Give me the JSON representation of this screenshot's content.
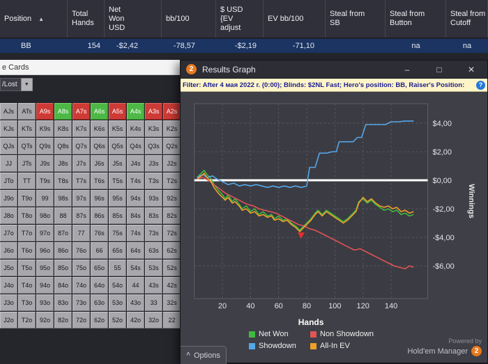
{
  "icons": {
    "sort_asc": "▲",
    "dropdown": "▼",
    "options_chevron": "^",
    "help": "?"
  },
  "stats_table": {
    "columns": [
      {
        "label": "Position",
        "sort": "asc"
      },
      {
        "label": "Total\nHands"
      },
      {
        "label": "Net\nWon\nUSD"
      },
      {
        "label": "bb/100"
      },
      {
        "label": "$ USD\n{EV\nadjust"
      },
      {
        "label": "EV bb/100"
      },
      {
        "label": "Steal from\nSB"
      },
      {
        "label": "Steal from\nButton"
      },
      {
        "label": "Steal from\nCutoff"
      }
    ],
    "row": {
      "values": [
        "BB",
        "154",
        "-$2,42",
        "-78,57",
        "-$2,19",
        "-71,10",
        "",
        "na",
        "na"
      ]
    }
  },
  "hole_cards": {
    "title": "e Cards",
    "filter_dropdown": "/Lost",
    "grid": [
      [
        "AJs",
        "ATs",
        "A9s",
        "A8s",
        "A7s",
        "A6s",
        "A5s",
        "A4s",
        "A3s",
        "A2s"
      ],
      [
        "KJs",
        "KTs",
        "K9s",
        "K8s",
        "K7s",
        "K6s",
        "K5s",
        "K4s",
        "K3s",
        "K2s"
      ],
      [
        "QJs",
        "QTs",
        "Q9s",
        "Q8s",
        "Q7s",
        "Q6s",
        "Q5s",
        "Q4s",
        "Q3s",
        "Q2s"
      ],
      [
        "JJ",
        "JTs",
        "J9s",
        "J8s",
        "J7s",
        "J6s",
        "J5s",
        "J4s",
        "J3s",
        "J2s"
      ],
      [
        "JTo",
        "TT",
        "T9s",
        "T8s",
        "T7s",
        "T6s",
        "T5s",
        "T4s",
        "T3s",
        "T2s"
      ],
      [
        "J9o",
        "T9o",
        "99",
        "98s",
        "97s",
        "96s",
        "95s",
        "94s",
        "93s",
        "92s"
      ],
      [
        "J8o",
        "T8o",
        "98o",
        "88",
        "87s",
        "86s",
        "85s",
        "84s",
        "83s",
        "82s"
      ],
      [
        "J7o",
        "T7o",
        "97o",
        "87o",
        "77",
        "76s",
        "75s",
        "74s",
        "73s",
        "72s"
      ],
      [
        "J6o",
        "T6o",
        "96o",
        "86o",
        "76o",
        "66",
        "65s",
        "64s",
        "63s",
        "62s"
      ],
      [
        "J5o",
        "T5o",
        "95o",
        "85o",
        "75o",
        "65o",
        "55",
        "54s",
        "53s",
        "52s"
      ],
      [
        "J4o",
        "T4o",
        "94o",
        "84o",
        "74o",
        "64o",
        "54o",
        "44",
        "43s",
        "42s"
      ],
      [
        "J3o",
        "T3o",
        "93o",
        "83o",
        "73o",
        "63o",
        "53o",
        "43o",
        "33",
        "32s"
      ],
      [
        "J2o",
        "T2o",
        "92o",
        "82o",
        "72o",
        "62o",
        "52o",
        "42o",
        "32o",
        "22"
      ]
    ],
    "cell_colors": {
      "A9s": "red",
      "A8s": "green",
      "A7s": "red",
      "A6s": "green",
      "A5s": "red",
      "A4s": "green",
      "A3s": "red",
      "A2s": "red"
    }
  },
  "graph_window": {
    "title": "Results Graph",
    "logo": "2",
    "window_buttons": [
      {
        "name": "minimize",
        "glyph": "–"
      },
      {
        "name": "maximize",
        "glyph": "□"
      },
      {
        "name": "close",
        "glyph": "✕"
      }
    ],
    "filter_text": "Filter: After 4 мая 2022 г. (0:00); Blinds: $2NL Fast; Hero's position: BB, Raiser's Position:",
    "options_label": "Options",
    "powered_by": {
      "line1": "Powered by",
      "line2": "Hold'em Manager",
      "logo": "2"
    }
  },
  "chart_data": {
    "type": "line",
    "title": "Results Graph",
    "xlabel": "Hands",
    "ylabel": "Winnings",
    "x_ticks": [
      20,
      40,
      60,
      80,
      100,
      120,
      140
    ],
    "y_ticks": [
      "$4,00",
      "$2,00",
      "$0,00",
      "-$2,00",
      "-$4,00",
      "-$6,00"
    ],
    "y_tick_values": [
      4,
      2,
      0,
      -2,
      -4,
      -6
    ],
    "xlim": [
      0,
      166
    ],
    "ylim": [
      -8.3,
      5.4
    ],
    "grid": "dashed",
    "zero_line": true,
    "legend_position": "bottom",
    "marker": {
      "x": 76,
      "y": -4.1,
      "shape": "triangle-down",
      "color": "#e03030"
    },
    "series": [
      {
        "name": "Net Won",
        "color": "#3fba3f",
        "points": [
          [
            2,
            0.2
          ],
          [
            5,
            0.5
          ],
          [
            7,
            0.7
          ],
          [
            9,
            0.4
          ],
          [
            12,
            0.1
          ],
          [
            14,
            -0.3
          ],
          [
            17,
            -0.7
          ],
          [
            20,
            -1.0
          ],
          [
            22,
            -1.3
          ],
          [
            24,
            -1.0
          ],
          [
            27,
            -1.5
          ],
          [
            29,
            -1.3
          ],
          [
            32,
            -1.7
          ],
          [
            34,
            -2.0
          ],
          [
            37,
            -1.8
          ],
          [
            40,
            -2.2
          ],
          [
            43,
            -2.0
          ],
          [
            46,
            -2.4
          ],
          [
            49,
            -2.2
          ],
          [
            52,
            -2.5
          ],
          [
            55,
            -2.4
          ],
          [
            57,
            -2.7
          ],
          [
            60,
            -2.5
          ],
          [
            63,
            -2.8
          ],
          [
            66,
            -2.7
          ],
          [
            69,
            -3.0
          ],
          [
            72,
            -3.2
          ],
          [
            75,
            -3.5
          ],
          [
            77,
            -3.3
          ],
          [
            80,
            -3.0
          ],
          [
            83,
            -2.7
          ],
          [
            86,
            -2.3
          ],
          [
            88,
            -2.1
          ],
          [
            91,
            -2.4
          ],
          [
            94,
            -2.1
          ],
          [
            97,
            -2.3
          ],
          [
            100,
            -2.5
          ],
          [
            103,
            -2.7
          ],
          [
            106,
            -2.9
          ],
          [
            109,
            -2.7
          ],
          [
            112,
            -2.4
          ],
          [
            115,
            -2.1
          ],
          [
            117,
            -1.5
          ],
          [
            120,
            -1.3
          ],
          [
            123,
            -1.6
          ],
          [
            126,
            -1.4
          ],
          [
            129,
            -1.7
          ],
          [
            132,
            -1.9
          ],
          [
            135,
            -2.1
          ],
          [
            138,
            -2.0
          ],
          [
            141,
            -2.2
          ],
          [
            144,
            -2.1
          ],
          [
            147,
            -2.4
          ],
          [
            150,
            -2.3
          ],
          [
            153,
            -2.5
          ],
          [
            156,
            -2.4
          ]
        ]
      },
      {
        "name": "Non Showdown",
        "color": "#e05555",
        "points": [
          [
            2,
            0.1
          ],
          [
            6,
            0.2
          ],
          [
            10,
            0.0
          ],
          [
            14,
            -0.3
          ],
          [
            18,
            -0.6
          ],
          [
            22,
            -0.9
          ],
          [
            26,
            -1.1
          ],
          [
            30,
            -1.3
          ],
          [
            34,
            -1.5
          ],
          [
            38,
            -1.7
          ],
          [
            42,
            -1.8
          ],
          [
            46,
            -2.0
          ],
          [
            50,
            -2.1
          ],
          [
            54,
            -2.2
          ],
          [
            58,
            -2.3
          ],
          [
            62,
            -2.5
          ],
          [
            66,
            -2.7
          ],
          [
            70,
            -2.9
          ],
          [
            74,
            -3.1
          ],
          [
            78,
            -3.2
          ],
          [
            82,
            -3.4
          ],
          [
            86,
            -3.5
          ],
          [
            90,
            -3.7
          ],
          [
            94,
            -3.9
          ],
          [
            98,
            -4.1
          ],
          [
            102,
            -4.3
          ],
          [
            106,
            -4.5
          ],
          [
            110,
            -4.7
          ],
          [
            114,
            -4.9
          ],
          [
            118,
            -4.8
          ],
          [
            122,
            -5.0
          ],
          [
            126,
            -5.2
          ],
          [
            130,
            -5.4
          ],
          [
            134,
            -5.6
          ],
          [
            138,
            -5.8
          ],
          [
            142,
            -6.0
          ],
          [
            146,
            -6.1
          ],
          [
            150,
            -6.2
          ],
          [
            153,
            -6.0
          ],
          [
            156,
            -6.1
          ]
        ]
      },
      {
        "name": "Showdown",
        "color": "#55a8e8",
        "points": [
          [
            2,
            0.2
          ],
          [
            6,
            0.4
          ],
          [
            9,
            0.2
          ],
          [
            13,
            0.3
          ],
          [
            16,
            0.1
          ],
          [
            20,
            -0.1
          ],
          [
            24,
            -0.3
          ],
          [
            28,
            -0.2
          ],
          [
            32,
            -0.4
          ],
          [
            36,
            -0.3
          ],
          [
            40,
            -0.4
          ],
          [
            44,
            -0.3
          ],
          [
            48,
            -0.4
          ],
          [
            52,
            -0.5
          ],
          [
            56,
            -0.4
          ],
          [
            60,
            -0.5
          ],
          [
            64,
            -0.4
          ],
          [
            68,
            -0.5
          ],
          [
            72,
            -0.4
          ],
          [
            76,
            -0.5
          ],
          [
            80,
            -0.4
          ],
          [
            82,
            0.9
          ],
          [
            86,
            0.9
          ],
          [
            89,
            1.9
          ],
          [
            94,
            1.9
          ],
          [
            98,
            2.0
          ],
          [
            101,
            2.0
          ],
          [
            103,
            2.7
          ],
          [
            108,
            2.7
          ],
          [
            113,
            2.7
          ],
          [
            116,
            3.0
          ],
          [
            119,
            3.0
          ],
          [
            122,
            3.9
          ],
          [
            127,
            3.9
          ],
          [
            132,
            3.9
          ],
          [
            136,
            3.9
          ],
          [
            140,
            4.1
          ],
          [
            145,
            4.1
          ],
          [
            150,
            4.15
          ],
          [
            156,
            4.15
          ]
        ]
      },
      {
        "name": "All-In EV",
        "color": "#f0a028",
        "points": [
          [
            2,
            0.1
          ],
          [
            5,
            0.3
          ],
          [
            7,
            0.5
          ],
          [
            9,
            0.2
          ],
          [
            12,
            -0.1
          ],
          [
            14,
            -0.5
          ],
          [
            17,
            -0.9
          ],
          [
            20,
            -1.2
          ],
          [
            22,
            -1.4
          ],
          [
            24,
            -1.2
          ],
          [
            27,
            -1.6
          ],
          [
            29,
            -1.5
          ],
          [
            32,
            -1.8
          ],
          [
            34,
            -2.1
          ],
          [
            37,
            -2.0
          ],
          [
            40,
            -2.3
          ],
          [
            43,
            -2.2
          ],
          [
            46,
            -2.5
          ],
          [
            49,
            -2.4
          ],
          [
            52,
            -2.6
          ],
          [
            55,
            -2.5
          ],
          [
            57,
            -2.8
          ],
          [
            60,
            -2.7
          ],
          [
            63,
            -2.9
          ],
          [
            66,
            -2.8
          ],
          [
            69,
            -3.1
          ],
          [
            72,
            -3.3
          ],
          [
            75,
            -3.6
          ],
          [
            77,
            -3.4
          ],
          [
            80,
            -3.1
          ],
          [
            83,
            -2.8
          ],
          [
            86,
            -2.4
          ],
          [
            88,
            -2.2
          ],
          [
            91,
            -2.5
          ],
          [
            94,
            -2.2
          ],
          [
            97,
            -2.4
          ],
          [
            100,
            -2.6
          ],
          [
            103,
            -2.8
          ],
          [
            106,
            -3.0
          ],
          [
            109,
            -2.8
          ],
          [
            112,
            -2.5
          ],
          [
            115,
            -2.2
          ],
          [
            117,
            -1.6
          ],
          [
            120,
            -1.2
          ],
          [
            123,
            -1.5
          ],
          [
            126,
            -1.3
          ],
          [
            129,
            -1.6
          ],
          [
            132,
            -1.8
          ],
          [
            135,
            -1.9
          ],
          [
            138,
            -1.8
          ],
          [
            141,
            -2.0
          ],
          [
            144,
            -1.9
          ],
          [
            147,
            -2.2
          ],
          [
            150,
            -2.1
          ],
          [
            153,
            -2.3
          ],
          [
            156,
            -2.2
          ]
        ]
      }
    ]
  }
}
